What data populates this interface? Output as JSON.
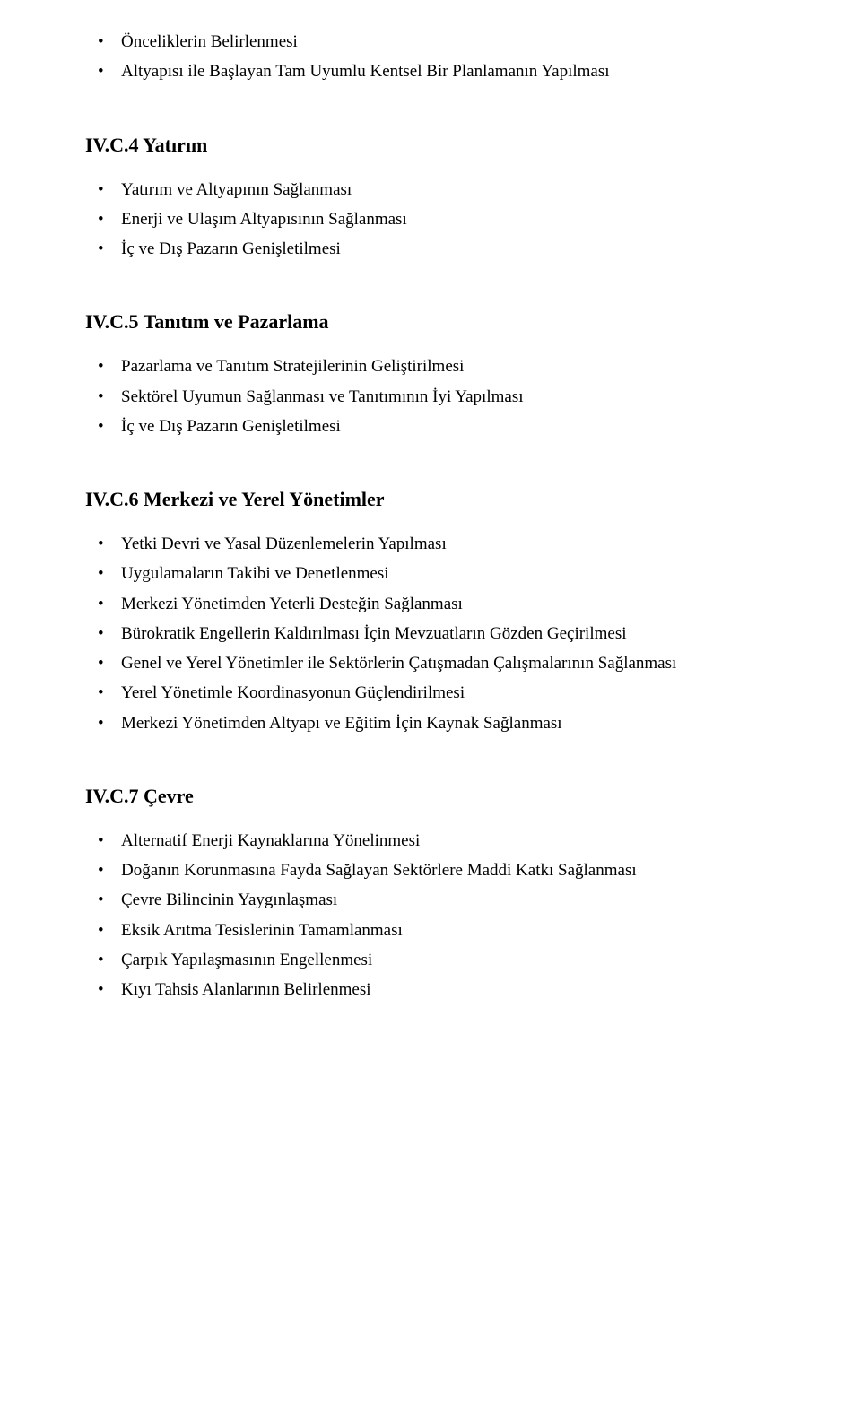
{
  "intro_bullets": [
    "Önceliklerin Belirlenmesi",
    "Altyapısı ile Başlayan Tam Uyumlu Kentsel Bir Planlamanın Yapılması"
  ],
  "sections": [
    {
      "heading": "IV.C.4 Yatırım",
      "bullets": [
        "Yatırım ve Altyapının Sağlanması",
        "Enerji ve Ulaşım Altyapısının Sağlanması",
        "İç ve Dış Pazarın Genişletilmesi"
      ]
    },
    {
      "heading": "IV.C.5 Tanıtım ve Pazarlama",
      "bullets": [
        "Pazarlama ve Tanıtım Stratejilerinin Geliştirilmesi",
        "Sektörel Uyumun Sağlanması ve Tanıtımının İyi Yapılması",
        "İç ve Dış Pazarın Genişletilmesi"
      ]
    },
    {
      "heading": "IV.C.6 Merkezi ve Yerel Yönetimler",
      "bullets": [
        "Yetki Devri ve Yasal Düzenlemelerin Yapılması",
        "Uygulamaların Takibi ve Denetlenmesi",
        "Merkezi Yönetimden Yeterli Desteğin Sağlanması",
        "Bürokratik Engellerin Kaldırılması İçin Mevzuatların Gözden Geçirilmesi",
        "Genel ve Yerel Yönetimler ile Sektörlerin Çatışmadan Çalışmalarının Sağlanması",
        "Yerel Yönetimle Koordinasyonun Güçlendirilmesi",
        "Merkezi Yönetimden Altyapı ve Eğitim İçin Kaynak Sağlanması"
      ]
    },
    {
      "heading": "IV.C.7 Çevre",
      "bullets": [
        "Alternatif Enerji Kaynaklarına Yönelinmesi",
        "Doğanın Korunmasına Fayda Sağlayan Sektörlere Maddi Katkı Sağlanması",
        "Çevre Bilincinin Yaygınlaşması",
        "Eksik Arıtma Tesislerinin Tamamlanması",
        "Çarpık Yapılaşmasının Engellenmesi",
        "Kıyı Tahsis Alanlarının Belirlenmesi"
      ]
    }
  ]
}
